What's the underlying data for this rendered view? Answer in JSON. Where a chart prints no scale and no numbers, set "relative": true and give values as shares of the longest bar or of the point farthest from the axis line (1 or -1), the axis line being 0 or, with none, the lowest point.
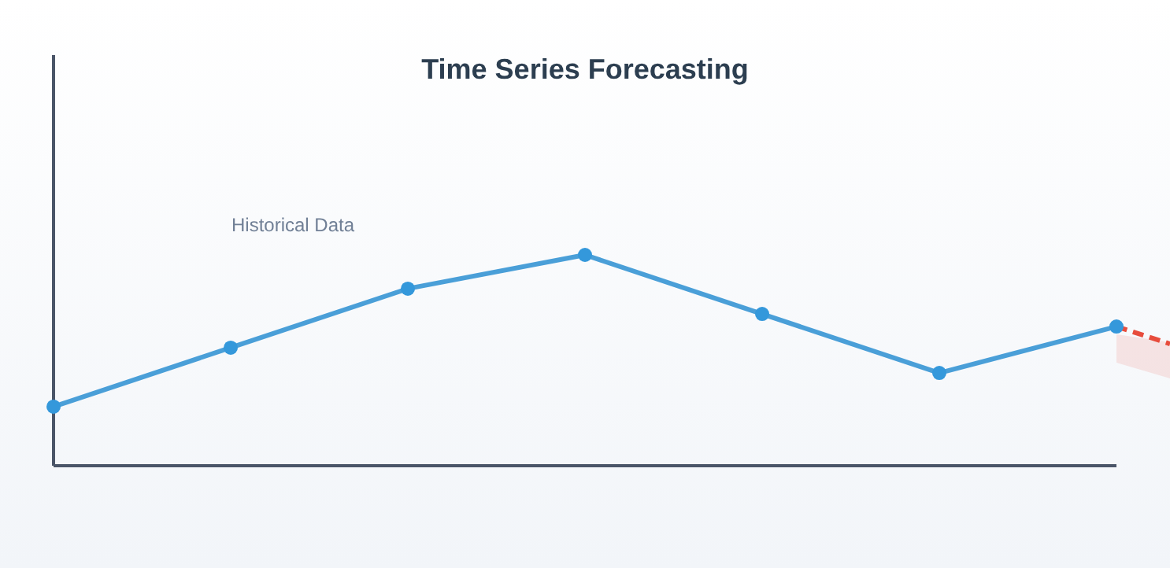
{
  "chart_data": {
    "type": "line",
    "title": "Time Series Forecasting",
    "relative": true,
    "categories": [
      null,
      null,
      null,
      null,
      null,
      null,
      null
    ],
    "marker": "circle",
    "annotations": [
      "Historical Data"
    ],
    "series": [
      {
        "color": "#4a9fd8",
        "values": [
          0.28,
          0.56,
          0.84,
          1,
          0.72,
          0.44,
          0.66
        ]
      }
    ]
  }
}
